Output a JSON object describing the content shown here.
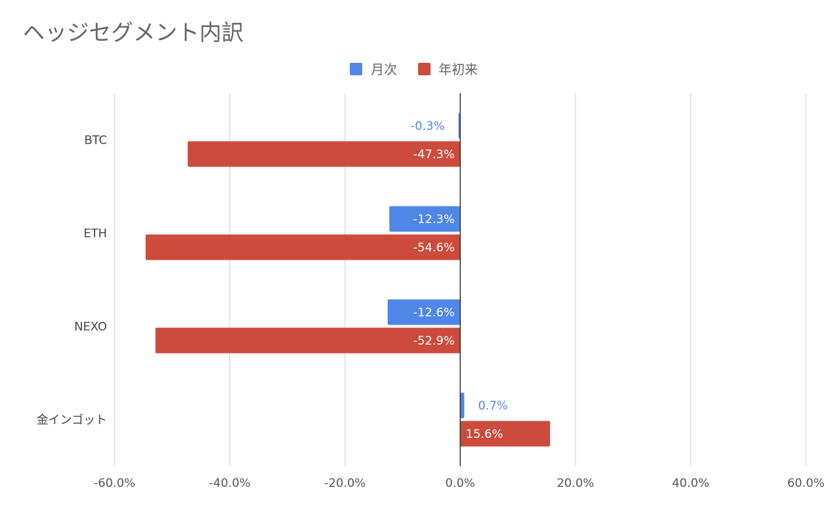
{
  "chart_data": {
    "type": "bar",
    "orientation": "horizontal",
    "title": "ヘッジセグメント内訳",
    "categories": [
      "BTC",
      "ETH",
      "NEXO",
      "金インゴット"
    ],
    "series": [
      {
        "name": "月次",
        "color": "#4f86e8",
        "values": [
          -0.3,
          -12.3,
          -12.6,
          0.7
        ],
        "labels": [
          "-0.3%",
          "-12.3%",
          "-12.6%",
          "0.7%"
        ]
      },
      {
        "name": "年初来",
        "color": "#cc4b3c",
        "values": [
          -47.3,
          -54.6,
          -52.9,
          15.6
        ],
        "labels": [
          "-47.3%",
          "-54.6%",
          "-52.9%",
          "15.6%"
        ]
      }
    ],
    "xlim": [
      -60,
      60
    ],
    "xticks": [
      -60,
      -40,
      -20,
      0,
      20,
      40,
      60
    ],
    "xtick_labels": [
      "-60.0%",
      "-40.0%",
      "-20.0%",
      "0.0%",
      "20.0%",
      "40.0%",
      "60.0%"
    ],
    "legend_position": "top-center",
    "grid": true
  }
}
